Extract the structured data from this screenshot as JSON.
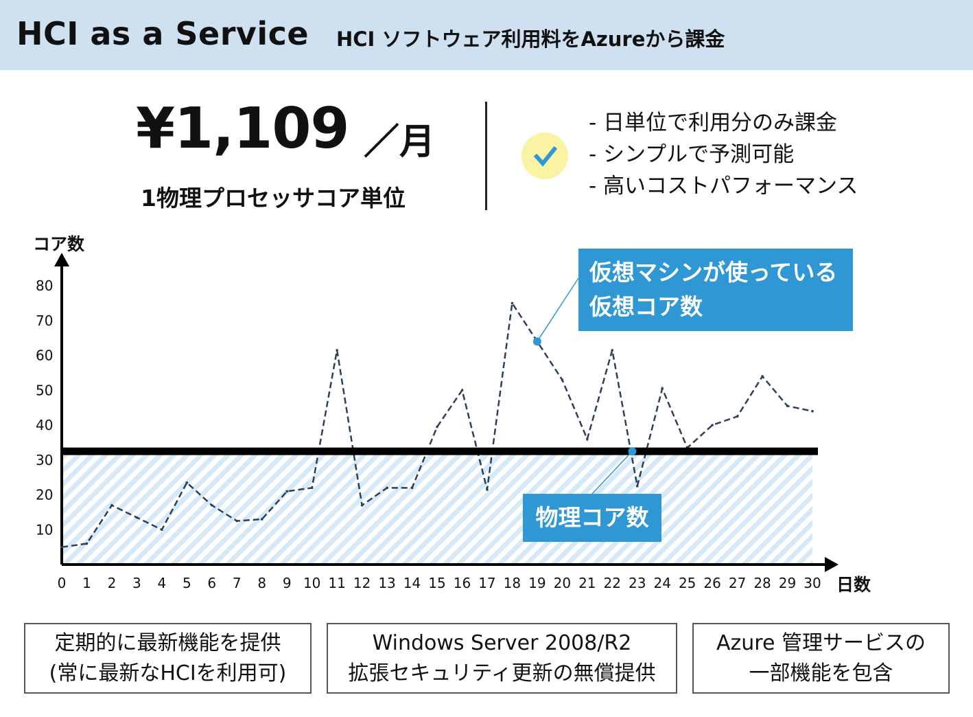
{
  "header": {
    "title": "HCI as a Service",
    "subtitle": "HCI ソフトウェア利用料をAzureから課金"
  },
  "pricing": {
    "price": "¥1,109",
    "unit": "／月",
    "note": "1物理プロセッサコア単位"
  },
  "benefits": {
    "icon": "checkmark-icon",
    "items": [
      "- 日単位で利用分のみ課金",
      "- シンプルで予測可能",
      "- 高いコストパフォーマンス"
    ]
  },
  "colors": {
    "banner": "#cfe0f1",
    "callout": "#2f97d4",
    "check_bg": "#fbf3a4",
    "check_mark": "#2f97d4",
    "hatch": "#d6e9f6"
  },
  "chart_data": {
    "type": "line",
    "xlabel": "日数",
    "ylabel": "コア数",
    "xlim": [
      0,
      30
    ],
    "ylim": [
      0,
      80
    ],
    "x_ticks": [
      0,
      1,
      2,
      3,
      4,
      5,
      6,
      7,
      8,
      9,
      10,
      11,
      12,
      13,
      14,
      15,
      16,
      17,
      18,
      19,
      20,
      21,
      22,
      23,
      24,
      25,
      26,
      27,
      28,
      29,
      30
    ],
    "y_ticks": [
      10,
      20,
      30,
      40,
      50,
      60,
      70,
      80
    ],
    "series": [
      {
        "name": "仮想マシンが使っている仮想コア数",
        "style": "dashed",
        "x": [
          0,
          1,
          2,
          3,
          4,
          5,
          6,
          7,
          8,
          9,
          10,
          11,
          12,
          13,
          14,
          15,
          16,
          17,
          18,
          19,
          20,
          21,
          22,
          23,
          24,
          25,
          26,
          27,
          28,
          29,
          30
        ],
        "values": [
          5,
          6,
          17,
          13.5,
          10,
          23.5,
          17,
          12.5,
          13,
          21,
          22,
          61.5,
          17,
          22,
          22,
          39.5,
          50,
          21.5,
          75,
          64,
          53,
          36,
          61.5,
          22.5,
          50.5,
          33.5,
          40,
          42.5,
          54,
          45.5,
          44
        ]
      },
      {
        "name": "物理コア数",
        "style": "solid-thick",
        "x": [
          0,
          30
        ],
        "values": [
          32.5,
          32.5
        ]
      }
    ],
    "annotations": [
      {
        "lines": [
          "仮想マシンが使っている",
          "仮想コア数"
        ]
      },
      {
        "lines": [
          "物理コア数"
        ]
      }
    ]
  },
  "features": [
    {
      "lines": [
        "定期的に最新機能を提供",
        "(常に最新なHCIを利用可)"
      ]
    },
    {
      "lines": [
        "Windows Server 2008/R2",
        "拡張セキュリティ更新の無償提供"
      ]
    },
    {
      "lines": [
        "Azure 管理サービスの",
        "一部機能を包含"
      ]
    }
  ]
}
